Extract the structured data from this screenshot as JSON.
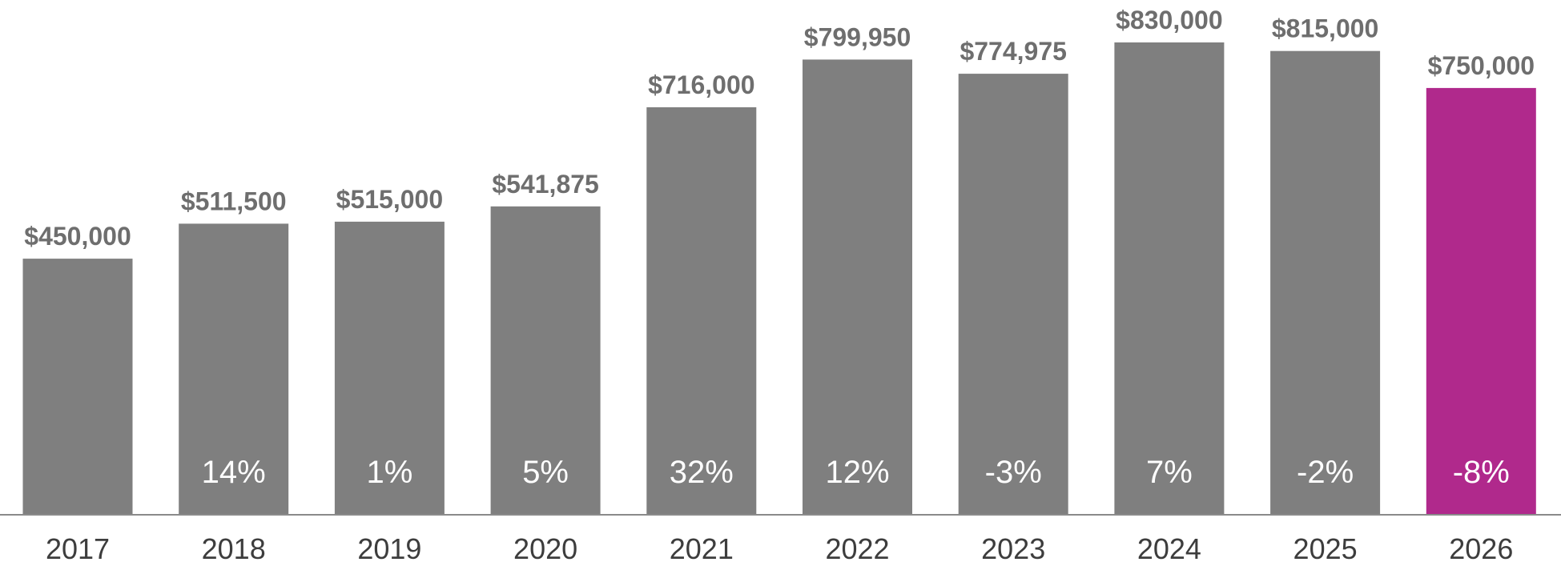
{
  "chart_data": {
    "type": "bar",
    "title": "",
    "xlabel": "",
    "ylabel": "",
    "ylim": [
      0,
      830000
    ],
    "grid": false,
    "categories": [
      "2017",
      "2018",
      "2019",
      "2020",
      "2021",
      "2022",
      "2023",
      "2024",
      "2025",
      "2026"
    ],
    "values": [
      450000,
      511500,
      515000,
      541875,
      716000,
      799950,
      774975,
      830000,
      815000,
      750000
    ],
    "value_labels": [
      "$450,000",
      "$511,500",
      "$515,000",
      "$541,875",
      "$716,000",
      "$799,950",
      "$774,975",
      "$830,000",
      "$815,000",
      "$750,000"
    ],
    "change_labels": [
      "",
      "14%",
      "1%",
      "5%",
      "32%",
      "12%",
      "-3%",
      "7%",
      "-2%",
      "-8%"
    ],
    "colors": {
      "default_bar": "#7f7f7f",
      "highlight_bar": "#b0298c",
      "value_label": "#6e6e6e",
      "change_label": "#ffffff",
      "axis": "#8a8a8a"
    },
    "highlight_category": "2026"
  }
}
